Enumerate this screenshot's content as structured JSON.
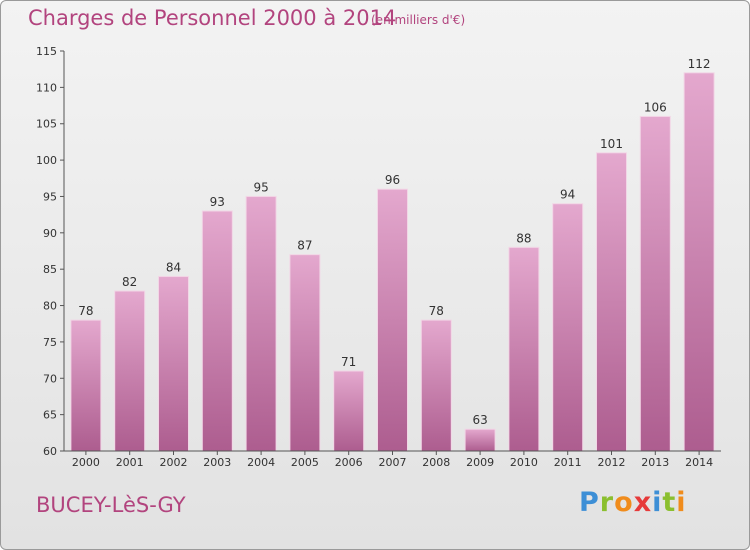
{
  "header": {
    "title": "Charges de Personnel 2000 à 2014",
    "subtitle": "(en milliers d'€)"
  },
  "footer": {
    "place": "BUCEY-LèS-GY",
    "logo": "Proxiti"
  },
  "colors": {
    "title": "#b2447e",
    "bar_top": "#e4a8ce",
    "bar_bottom": "#ad5d8f"
  },
  "chart_data": {
    "type": "bar",
    "title": "Charges de Personnel 2000 à 2014",
    "subtitle": "(en milliers d'€)",
    "categories": [
      "2000",
      "2001",
      "2002",
      "2003",
      "2004",
      "2005",
      "2006",
      "2007",
      "2008",
      "2009",
      "2010",
      "2011",
      "2012",
      "2013",
      "2014"
    ],
    "values": [
      78,
      82,
      84,
      93,
      95,
      87,
      71,
      96,
      78,
      63,
      88,
      94,
      101,
      106,
      112
    ],
    "ylim": [
      60,
      115
    ],
    "yticks": [
      60,
      65,
      70,
      75,
      80,
      85,
      90,
      95,
      100,
      105,
      110,
      115
    ],
    "grid": false,
    "legend": "none"
  }
}
